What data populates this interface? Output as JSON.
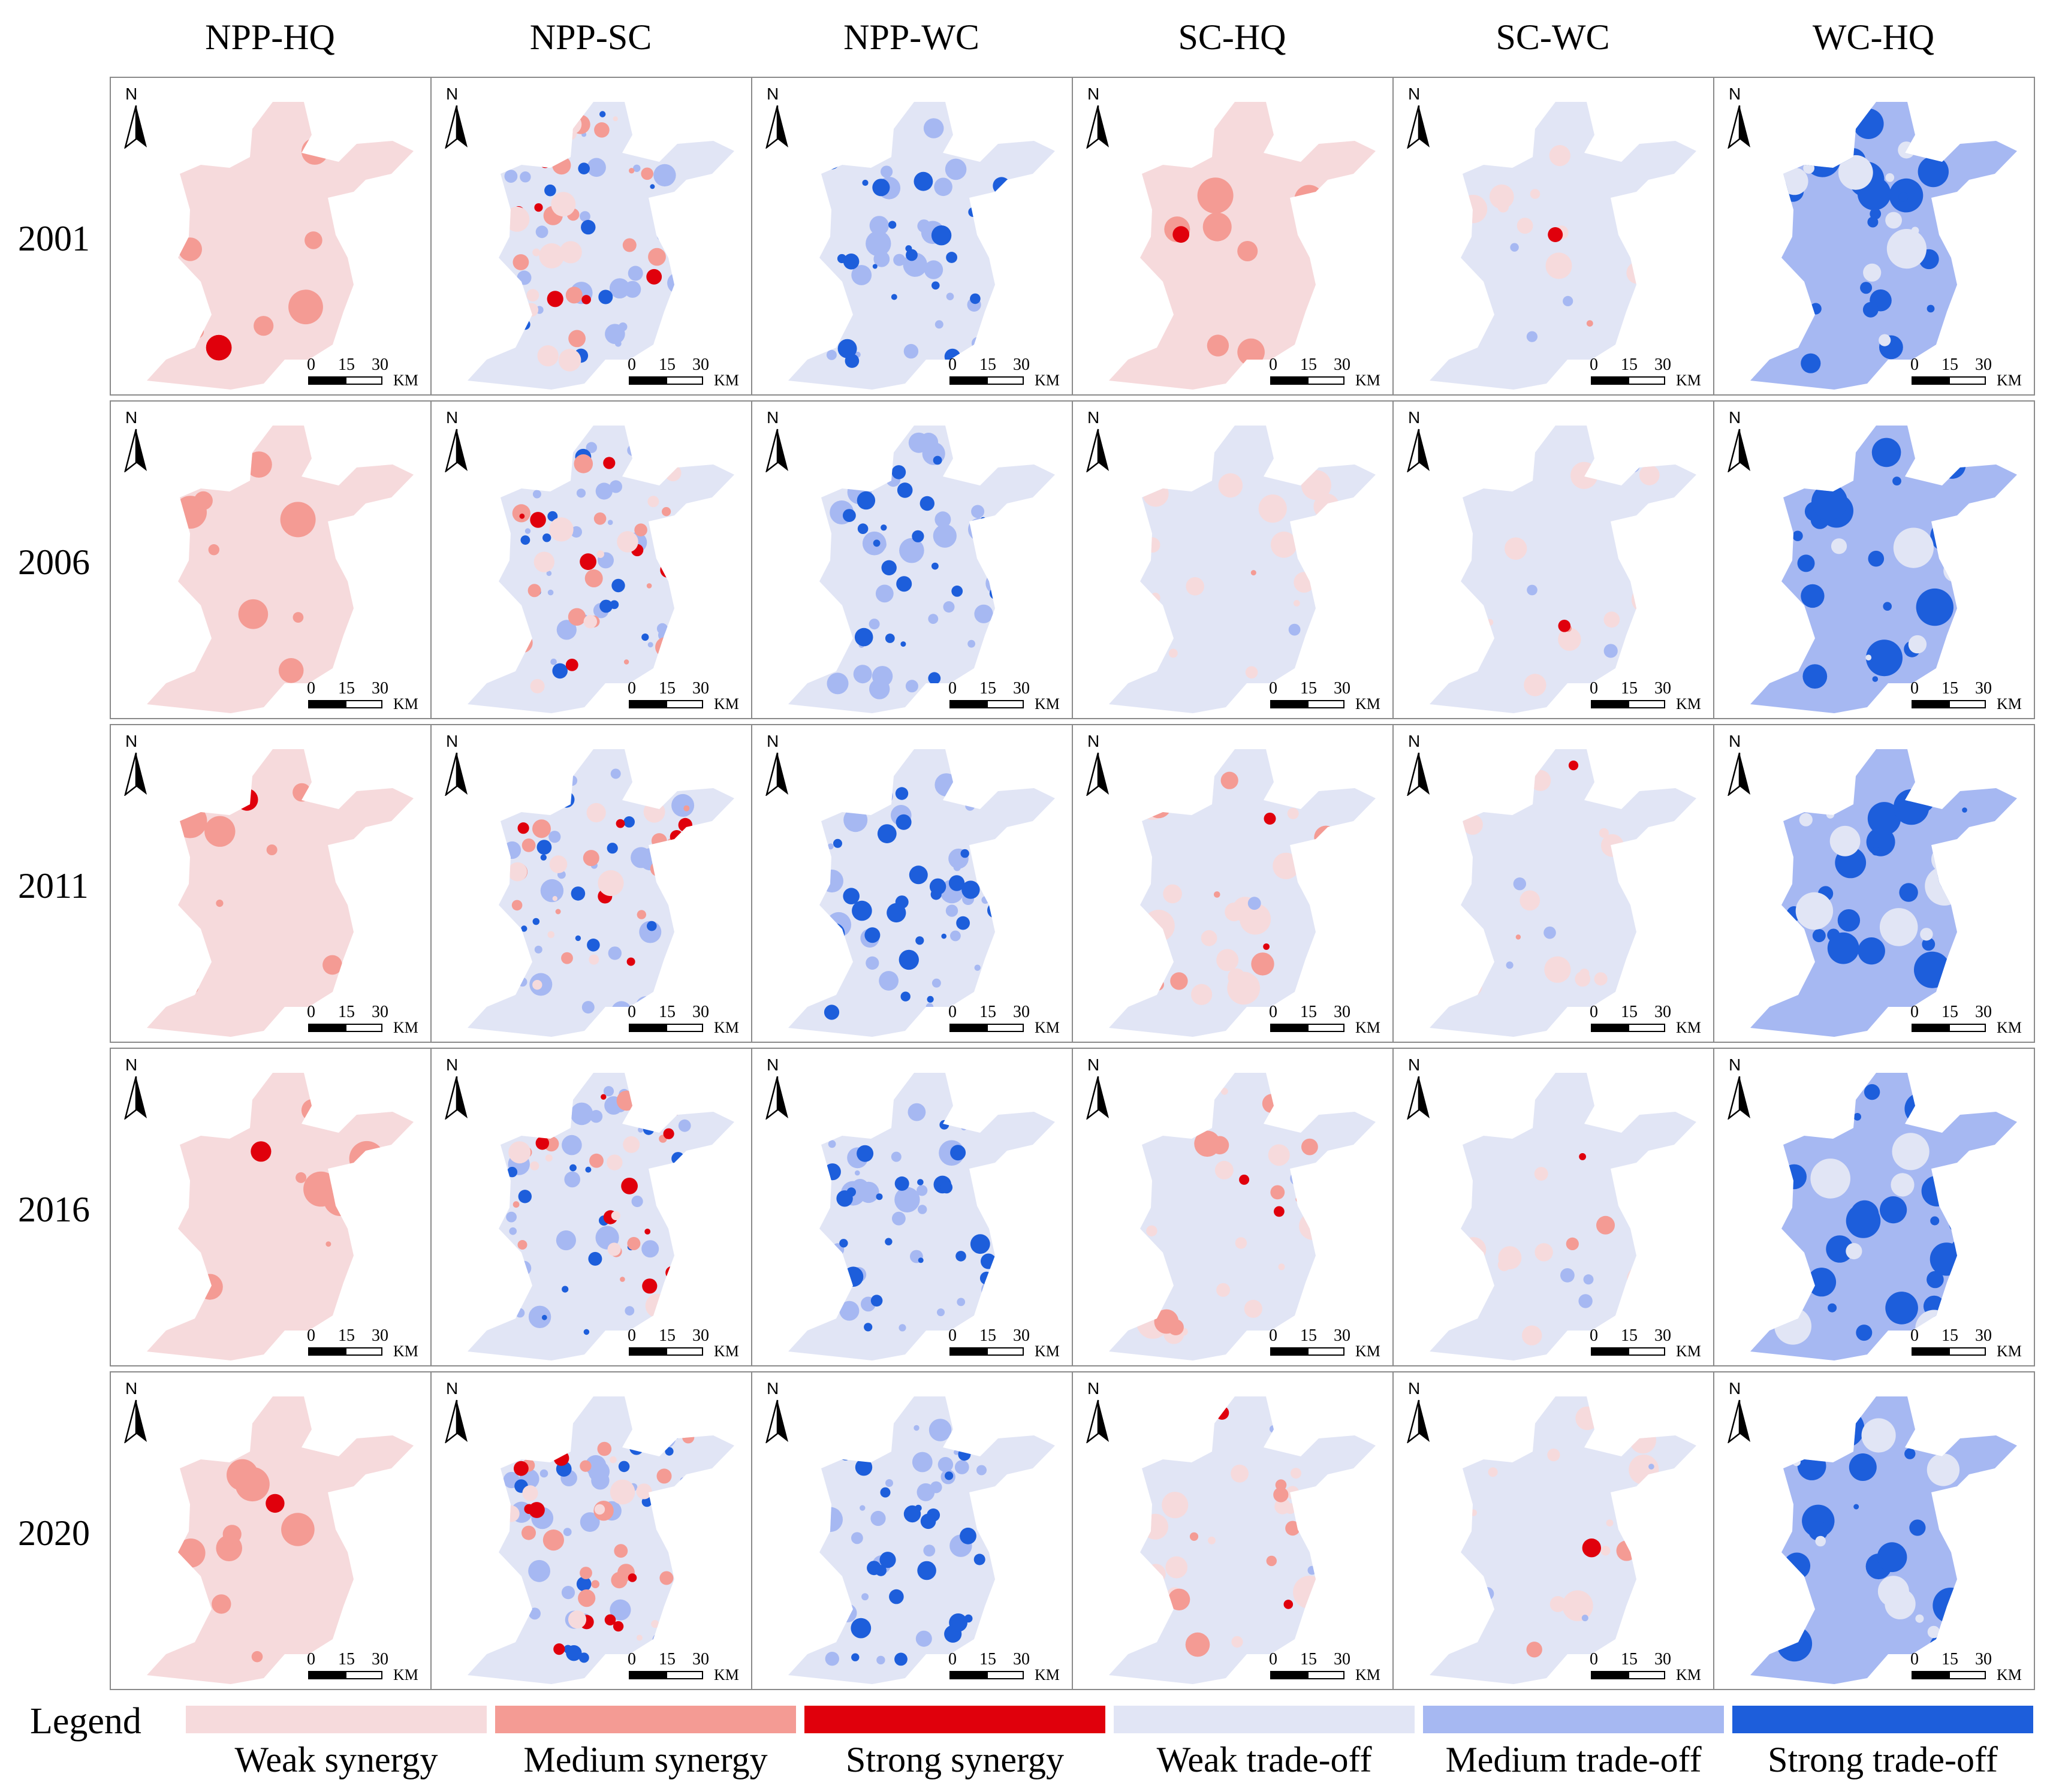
{
  "columns": [
    "NPP-HQ",
    "NPP-SC",
    "NPP-WC",
    "SC-HQ",
    "SC-WC",
    "WC-HQ"
  ],
  "rows": [
    "2001",
    "2006",
    "2011",
    "2016",
    "2020"
  ],
  "north_label": "N",
  "scale": {
    "t0": "0",
    "t15": "15",
    "t30": "30",
    "unit": "KM"
  },
  "legend": {
    "title": "Legend",
    "items": [
      {
        "label": "Weak synergy",
        "color": "#f6dadc"
      },
      {
        "label": "Medium synergy",
        "color": "#f49b94"
      },
      {
        "label": "Strong synergy",
        "color": "#e0000c"
      },
      {
        "label": "Weak trade-off",
        "color": "#e1e5f5"
      },
      {
        "label": "Medium trade-off",
        "color": "#a6b8f2"
      },
      {
        "label": "Strong trade-off",
        "color": "#1d5edb"
      }
    ]
  },
  "map_colors": {
    "weak_syn": "#f6dadc",
    "med_syn": "#f49b94",
    "strong_syn": "#e0000c",
    "weak_to": "#e1e5f5",
    "med_to": "#a6b8f2",
    "strong_to": "#1d5edb"
  }
}
